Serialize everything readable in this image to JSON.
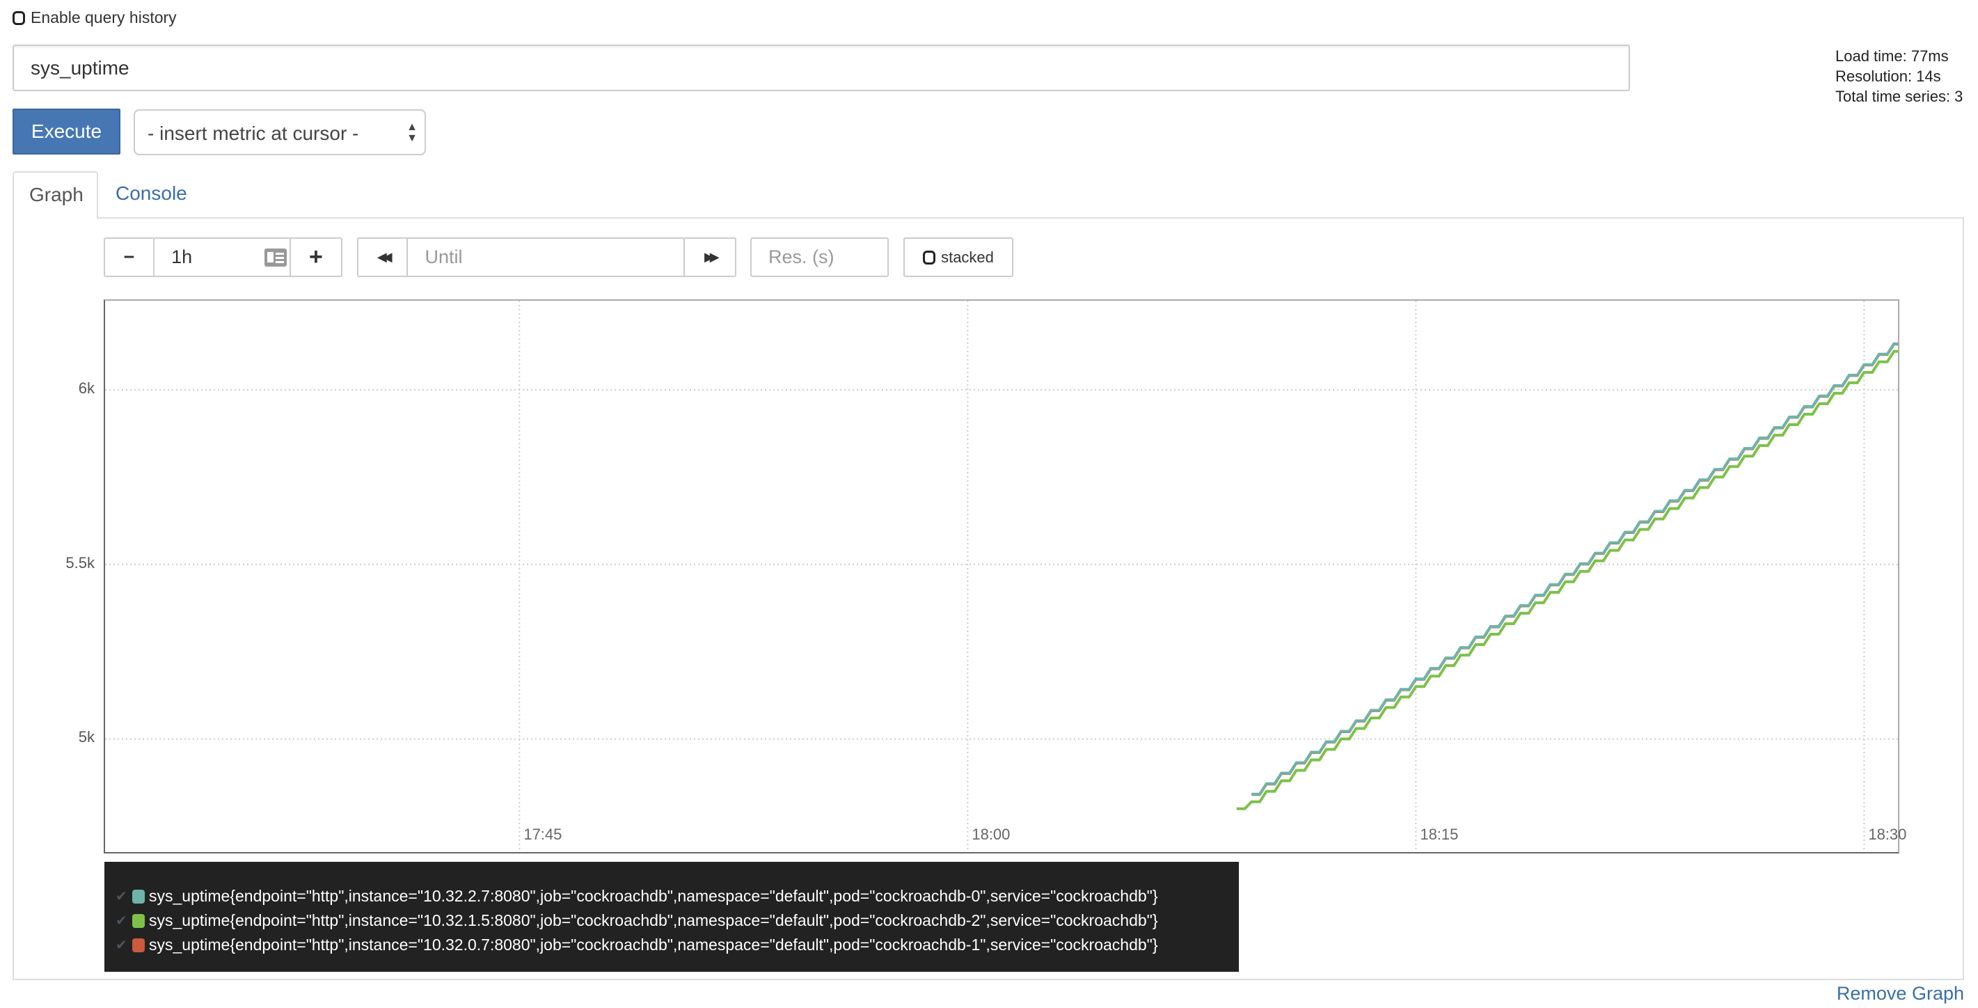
{
  "history": {
    "label": "Enable query history",
    "checked": false
  },
  "query": {
    "value": "sys_uptime"
  },
  "info": {
    "load_time": "Load time: 77ms",
    "resolution": "Resolution: 14s",
    "total_series": "Total time series: 3"
  },
  "execute_label": "Execute",
  "metric_select": {
    "selected": "- insert metric at cursor -"
  },
  "tabs": [
    {
      "label": "Graph",
      "active": true
    },
    {
      "label": "Console",
      "active": false
    }
  ],
  "controls": {
    "minus": "−",
    "range": "1h",
    "plus": "+",
    "back": "◀◀",
    "until_placeholder": "Until",
    "forward": "▶▶",
    "res_placeholder": "Res. (s)",
    "stacked_label": "stacked"
  },
  "remove_graph": "Remove Graph",
  "colors": {
    "series0": "#6fb3a8",
    "series1": "#7ec04a",
    "series2": "#cc5a3c",
    "accent": "#4677b3"
  },
  "chart_data": {
    "type": "line",
    "xlim": [
      "17:31:08",
      "18:31:08"
    ],
    "ylim": [
      4676,
      6255
    ],
    "yticks": [
      {
        "v": 5000,
        "label": "5k"
      },
      {
        "v": 5500,
        "label": "5.5k"
      },
      {
        "v": 6000,
        "label": "6k"
      }
    ],
    "xticks": [
      {
        "t": "17:45",
        "label": "17:45"
      },
      {
        "t": "18:00",
        "label": "18:00"
      },
      {
        "t": "18:15",
        "label": "18:15"
      },
      {
        "t": "18:30",
        "label": "18:30"
      }
    ],
    "grid": true,
    "legend": "bottom",
    "x": [
      "18:09:00",
      "18:09:30",
      "18:10:00",
      "18:10:30",
      "18:11:00",
      "18:11:30",
      "18:12:00",
      "18:12:30",
      "18:13:00",
      "18:13:30",
      "18:14:00",
      "18:14:30",
      "18:15:00",
      "18:15:30",
      "18:16:00",
      "18:16:30",
      "18:17:00",
      "18:17:30",
      "18:18:00",
      "18:18:30",
      "18:19:00",
      "18:19:30",
      "18:20:00",
      "18:20:30",
      "18:21:00",
      "18:21:30",
      "18:22:00",
      "18:22:30",
      "18:23:00",
      "18:23:30",
      "18:24:00",
      "18:24:30",
      "18:25:00",
      "18:25:30",
      "18:26:00",
      "18:26:30",
      "18:27:00",
      "18:27:30",
      "18:28:00",
      "18:28:30",
      "18:29:00",
      "18:29:30",
      "18:30:00",
      "18:30:30",
      "18:31:00"
    ],
    "series": [
      {
        "name": "sys_uptime{endpoint=\"http\",instance=\"10.32.2.7:8080\",job=\"cockroachdb\",namespace=\"default\",pod=\"cockroachdb-0\",service=\"cockroachdb\"}",
        "color": "#6fb3a8",
        "values": [
          null,
          4842,
          4872,
          4902,
          4932,
          4962,
          4992,
          5022,
          5052,
          5082,
          5112,
          5142,
          5172,
          5202,
          5232,
          5262,
          5292,
          5322,
          5352,
          5382,
          5412,
          5442,
          5472,
          5502,
          5532,
          5562,
          5592,
          5622,
          5652,
          5682,
          5712,
          5742,
          5772,
          5802,
          5832,
          5862,
          5892,
          5922,
          5952,
          5982,
          6012,
          6042,
          6072,
          6102,
          6132
        ]
      },
      {
        "name": "sys_uptime{endpoint=\"http\",instance=\"10.32.1.5:8080\",job=\"cockroachdb\",namespace=\"default\",pod=\"cockroachdb-2\",service=\"cockroachdb\"}",
        "color": "#7ec04a",
        "values": [
          4800,
          4820,
          4850,
          4880,
          4910,
          4940,
          4970,
          5000,
          5030,
          5060,
          5090,
          5120,
          5150,
          5180,
          5210,
          5240,
          5270,
          5300,
          5330,
          5360,
          5390,
          5420,
          5450,
          5480,
          5510,
          5540,
          5570,
          5600,
          5630,
          5660,
          5690,
          5720,
          5750,
          5780,
          5810,
          5840,
          5870,
          5900,
          5930,
          5960,
          5990,
          6020,
          6050,
          6080,
          6110
        ]
      },
      {
        "name": "sys_uptime{endpoint=\"http\",instance=\"10.32.0.7:8080\",job=\"cockroachdb\",namespace=\"default\",pod=\"cockroachdb-1\",service=\"cockroachdb\"}",
        "color": "#cc5a3c",
        "values": [
          null,
          4841,
          4871,
          4901,
          4931,
          4961,
          4991,
          5021,
          5051,
          5081,
          5111,
          5141,
          5171,
          5201,
          5231,
          5261,
          5291,
          5321,
          5351,
          5381,
          5411,
          5441,
          5471,
          5501,
          5531,
          5561,
          5591,
          5621,
          5651,
          5681,
          5711,
          5741,
          5771,
          5801,
          5831,
          5861,
          5891,
          5921,
          5951,
          5981,
          6011,
          6041,
          6071,
          6101,
          6131
        ]
      }
    ]
  }
}
